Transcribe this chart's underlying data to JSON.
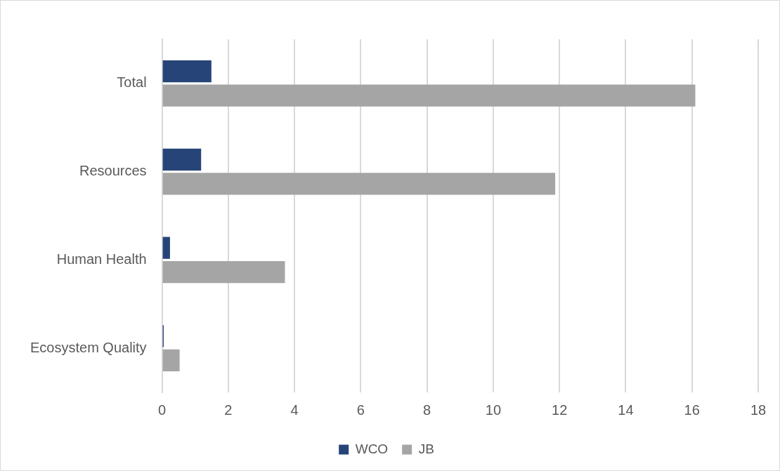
{
  "chart_data": {
    "type": "bar",
    "orientation": "horizontal",
    "categories": [
      "Total",
      "Resources",
      "Human Health",
      "Ecosystem Quality"
    ],
    "series": [
      {
        "name": "WCO",
        "color": "#264478",
        "values": [
          1.49,
          1.18,
          0.24,
          0.05
        ]
      },
      {
        "name": "JB",
        "color": "#a5a5a5",
        "values": [
          16.1,
          11.87,
          3.71,
          0.53
        ]
      }
    ],
    "xlim": [
      0,
      18
    ],
    "xticks": [
      0,
      2,
      4,
      6,
      8,
      10,
      12,
      14,
      16,
      18
    ],
    "grid": "x",
    "legend": "bottom"
  }
}
